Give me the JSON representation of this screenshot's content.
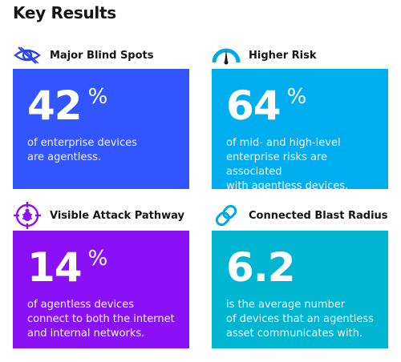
{
  "page": {
    "title": "Key Results"
  },
  "colors": {
    "blind_spots_bg": "#3355FF",
    "higher_risk_bg": "#00AEEF",
    "attack_pathway_bg": "#8A11F5",
    "blast_radius_bg": "#00B5D0",
    "icon_blue": "#2A46E8",
    "icon_cyan": "#00A9E8",
    "icon_purple": "#8A11F5"
  },
  "cards": [
    {
      "heading": "Major Blind Spots",
      "icon": "eye-slash-icon",
      "value": "42",
      "unit": "%",
      "description_lines": [
        "of enterprise devices",
        "are agentless."
      ]
    },
    {
      "heading": "Higher Risk",
      "icon": "gauge-icon",
      "value": "64",
      "unit": "%",
      "description_lines": [
        "of mid- and high-level",
        "enterprise risks are associated",
        "with agentless devices."
      ]
    },
    {
      "heading": "Visible Attack Pathway",
      "icon": "bug-target-icon",
      "value": "14",
      "unit": "%",
      "description_lines": [
        "of agentless devices",
        "connect to both the internet",
        "and internal networks."
      ]
    },
    {
      "heading": "Connected Blast Radius",
      "icon": "link-icon",
      "value": "6.2",
      "unit": "",
      "description_lines": [
        "is the average number",
        "of devices that an agentless",
        "asset communicates with."
      ]
    }
  ]
}
